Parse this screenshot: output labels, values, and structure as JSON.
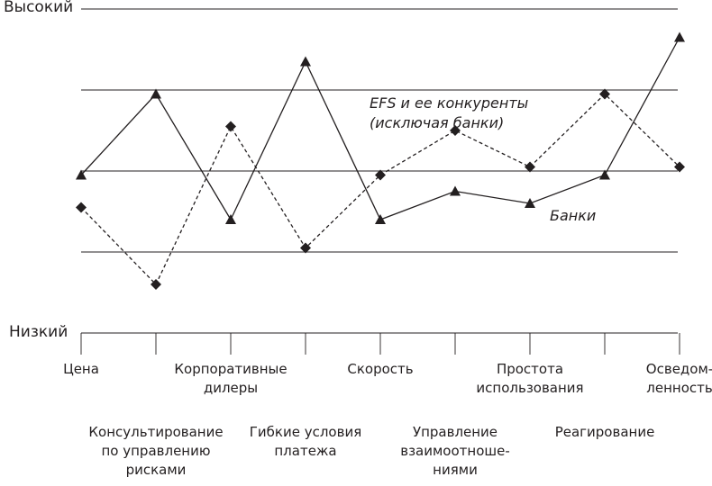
{
  "chart_data": {
    "type": "line",
    "ylabel_high": "Высокий",
    "ylabel_low": "Низкий",
    "ylim": [
      0,
      4
    ],
    "grid": true,
    "categories": [
      "Цена",
      "Консультирование по управлению рисками",
      "Корпоративные дилеры",
      "Гибкие условия платежа",
      "Скорость",
      "Управление взаимоотноше-ниями",
      "Простота использования",
      "Реагирование",
      "Осведом-ленность"
    ],
    "category_lines": [
      [
        "Цена"
      ],
      [
        "Консультирование",
        "по управлению",
        "рисками"
      ],
      [
        "Корпоративные",
        "дилеры"
      ],
      [
        "Гибкие условия",
        "платежа"
      ],
      [
        "Скорость"
      ],
      [
        "Управление",
        "взаимоотноше-",
        "ниями"
      ],
      [
        "Простота",
        "использования"
      ],
      [
        "Реагирование"
      ],
      [
        "Осведом-",
        "ленность"
      ]
    ],
    "series": [
      {
        "name": "Банки",
        "marker": "triangle",
        "line": "solid",
        "values": [
          1.95,
          2.95,
          1.4,
          3.35,
          1.4,
          1.75,
          1.6,
          1.95,
          3.65
        ]
      },
      {
        "name": "EFS и ее конкуренты (исключая банки)",
        "name_lines": [
          "EFS и ее конкуренты",
          "(исключая банки)"
        ],
        "marker": "diamond",
        "line": "dashed",
        "values": [
          1.55,
          0.6,
          2.55,
          1.05,
          1.95,
          2.5,
          2.05,
          2.95,
          2.05
        ]
      }
    ]
  }
}
